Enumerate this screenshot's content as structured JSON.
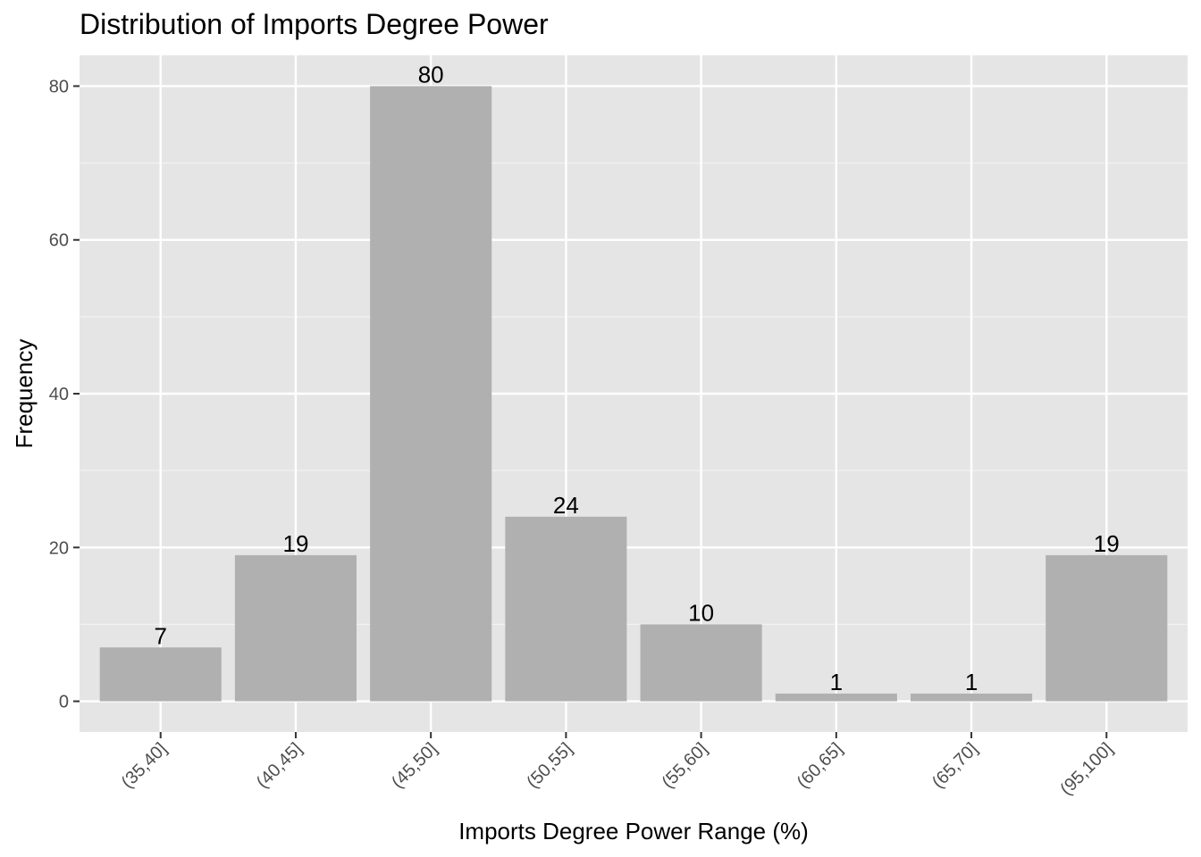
{
  "chart_data": {
    "type": "bar",
    "title": "Distribution of Imports Degree Power",
    "xlabel": "Imports Degree Power Range (%)",
    "ylabel": "Frequency",
    "categories": [
      "(35,40]",
      "(40,45]",
      "(45,50]",
      "(50,55]",
      "(55,60]",
      "(60,65]",
      "(65,70]",
      "(95,100]"
    ],
    "values": [
      7,
      19,
      80,
      24,
      10,
      1,
      1,
      19
    ],
    "ylim": [
      -4,
      84
    ],
    "yticks": [
      0,
      20,
      40,
      60,
      80
    ],
    "grid": true,
    "legend": "none",
    "colors": {
      "panel": "#e5e5e5",
      "bar": "#b0b0b0",
      "grid_major": "#ffffff",
      "grid_minor": "#f2f2f2",
      "tick": "#333333"
    }
  }
}
